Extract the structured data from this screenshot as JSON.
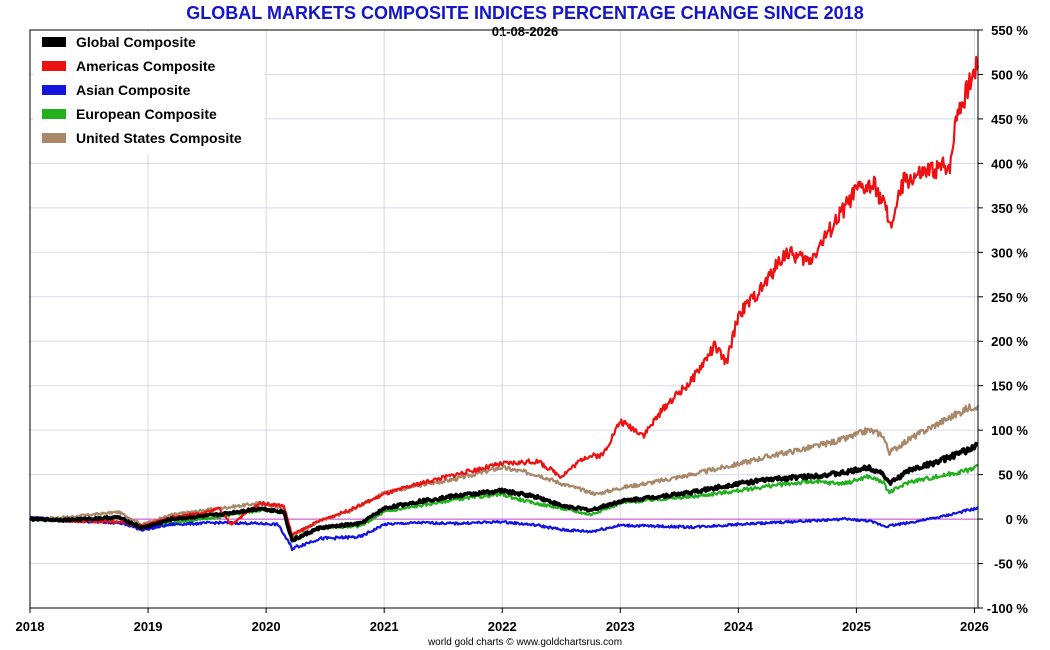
{
  "chart_data": {
    "type": "line",
    "title": "GLOBAL MARKETS COMPOSITE INDICES PERCENTAGE CHANGE SINCE 2018",
    "subtitle": "01-08-2026",
    "credit": "world gold charts © www.goldchartsrus.com",
    "xlabel": "",
    "ylabel": "",
    "xlim": [
      2018.0,
      2026.03
    ],
    "ylim": [
      -100,
      550
    ],
    "x_ticks": [
      "2018",
      "2019",
      "2020",
      "2021",
      "2022",
      "2023",
      "2024",
      "2025",
      "2026"
    ],
    "y_ticks": [
      -100,
      -50,
      0,
      50,
      100,
      150,
      200,
      250,
      300,
      350,
      400,
      450,
      500,
      550
    ],
    "y_tick_suffix": " %",
    "zero_line_color": "#cc44cc",
    "grid": true,
    "legend_position": "top-left",
    "series": [
      {
        "name": "United States Composite",
        "color": "#a88868",
        "points": [
          [
            2018.0,
            0
          ],
          [
            2018.3,
            2
          ],
          [
            2018.75,
            8
          ],
          [
            2018.95,
            -6
          ],
          [
            2019.2,
            5
          ],
          [
            2019.6,
            12
          ],
          [
            2019.95,
            18
          ],
          [
            2020.15,
            12
          ],
          [
            2020.22,
            -20
          ],
          [
            2020.45,
            -2
          ],
          [
            2020.7,
            8
          ],
          [
            2021.0,
            30
          ],
          [
            2021.3,
            38
          ],
          [
            2021.6,
            45
          ],
          [
            2021.99,
            58
          ],
          [
            2022.3,
            50
          ],
          [
            2022.5,
            40
          ],
          [
            2022.8,
            28
          ],
          [
            2023.0,
            35
          ],
          [
            2023.3,
            42
          ],
          [
            2023.6,
            50
          ],
          [
            2024.0,
            62
          ],
          [
            2024.3,
            72
          ],
          [
            2024.6,
            80
          ],
          [
            2024.9,
            90
          ],
          [
            2025.1,
            100
          ],
          [
            2025.22,
            95
          ],
          [
            2025.28,
            75
          ],
          [
            2025.45,
            90
          ],
          [
            2025.7,
            108
          ],
          [
            2025.95,
            125
          ],
          [
            2026.03,
            128
          ]
        ]
      },
      {
        "name": "European Composite",
        "color": "#22b01e",
        "points": [
          [
            2018.0,
            0
          ],
          [
            2018.3,
            -2
          ],
          [
            2018.75,
            -3
          ],
          [
            2018.95,
            -10
          ],
          [
            2019.2,
            -4
          ],
          [
            2019.6,
            2
          ],
          [
            2019.95,
            10
          ],
          [
            2020.15,
            8
          ],
          [
            2020.22,
            -25
          ],
          [
            2020.45,
            -10
          ],
          [
            2020.8,
            -8
          ],
          [
            2021.0,
            8
          ],
          [
            2021.3,
            15
          ],
          [
            2021.6,
            22
          ],
          [
            2021.99,
            28
          ],
          [
            2022.2,
            20
          ],
          [
            2022.5,
            12
          ],
          [
            2022.75,
            5
          ],
          [
            2023.0,
            18
          ],
          [
            2023.3,
            22
          ],
          [
            2023.6,
            25
          ],
          [
            2024.0,
            32
          ],
          [
            2024.3,
            38
          ],
          [
            2024.6,
            42
          ],
          [
            2024.9,
            40
          ],
          [
            2025.1,
            48
          ],
          [
            2025.22,
            42
          ],
          [
            2025.28,
            30
          ],
          [
            2025.45,
            42
          ],
          [
            2025.7,
            48
          ],
          [
            2025.95,
            55
          ],
          [
            2026.03,
            60
          ]
        ]
      },
      {
        "name": "Asian Composite",
        "color": "#1414e0",
        "points": [
          [
            2018.0,
            2
          ],
          [
            2018.3,
            -2
          ],
          [
            2018.75,
            -4
          ],
          [
            2018.95,
            -12
          ],
          [
            2019.2,
            -6
          ],
          [
            2019.6,
            -4
          ],
          [
            2019.95,
            -5
          ],
          [
            2020.1,
            -6
          ],
          [
            2020.22,
            -33
          ],
          [
            2020.45,
            -22
          ],
          [
            2020.8,
            -20
          ],
          [
            2021.0,
            -6
          ],
          [
            2021.3,
            -4
          ],
          [
            2021.6,
            -5
          ],
          [
            2021.99,
            -3
          ],
          [
            2022.3,
            -7
          ],
          [
            2022.5,
            -12
          ],
          [
            2022.75,
            -14
          ],
          [
            2023.0,
            -7
          ],
          [
            2023.3,
            -8
          ],
          [
            2023.6,
            -9
          ],
          [
            2024.0,
            -6
          ],
          [
            2024.3,
            -4
          ],
          [
            2024.6,
            -2
          ],
          [
            2024.9,
            0
          ],
          [
            2025.1,
            -2
          ],
          [
            2025.25,
            -8
          ],
          [
            2025.45,
            -4
          ],
          [
            2025.7,
            2
          ],
          [
            2025.95,
            10
          ],
          [
            2026.03,
            12
          ]
        ]
      },
      {
        "name": "Americas Composite",
        "color": "#ee1111",
        "points": [
          [
            2018.0,
            0
          ],
          [
            2018.3,
            -2
          ],
          [
            2018.75,
            -3
          ],
          [
            2018.95,
            -8
          ],
          [
            2019.2,
            2
          ],
          [
            2019.5,
            8
          ],
          [
            2019.6,
            12
          ],
          [
            2019.7,
            -6
          ],
          [
            2019.95,
            18
          ],
          [
            2020.15,
            15
          ],
          [
            2020.22,
            -18
          ],
          [
            2020.45,
            -2
          ],
          [
            2020.7,
            10
          ],
          [
            2021.0,
            28
          ],
          [
            2021.3,
            40
          ],
          [
            2021.6,
            50
          ],
          [
            2021.99,
            62
          ],
          [
            2022.3,
            65
          ],
          [
            2022.5,
            48
          ],
          [
            2022.7,
            70
          ],
          [
            2022.85,
            72
          ],
          [
            2023.0,
            110
          ],
          [
            2023.2,
            95
          ],
          [
            2023.4,
            130
          ],
          [
            2023.6,
            155
          ],
          [
            2023.8,
            195
          ],
          [
            2023.9,
            175
          ],
          [
            2024.0,
            230
          ],
          [
            2024.2,
            260
          ],
          [
            2024.4,
            300
          ],
          [
            2024.6,
            290
          ],
          [
            2024.8,
            330
          ],
          [
            2025.0,
            370
          ],
          [
            2025.15,
            375
          ],
          [
            2025.25,
            350
          ],
          [
            2025.28,
            325
          ],
          [
            2025.4,
            380
          ],
          [
            2025.6,
            390
          ],
          [
            2025.8,
            400
          ],
          [
            2025.85,
            460
          ],
          [
            2025.9,
            470
          ],
          [
            2026.0,
            505
          ],
          [
            2026.03,
            510
          ]
        ]
      },
      {
        "name": "Global Composite",
        "color": "#000000",
        "points": [
          [
            2018.0,
            0
          ],
          [
            2018.3,
            -1
          ],
          [
            2018.75,
            2
          ],
          [
            2018.95,
            -10
          ],
          [
            2019.2,
            0
          ],
          [
            2019.6,
            5
          ],
          [
            2019.95,
            12
          ],
          [
            2020.15,
            8
          ],
          [
            2020.22,
            -24
          ],
          [
            2020.45,
            -10
          ],
          [
            2020.8,
            -5
          ],
          [
            2021.0,
            12
          ],
          [
            2021.3,
            20
          ],
          [
            2021.6,
            26
          ],
          [
            2021.99,
            32
          ],
          [
            2022.3,
            25
          ],
          [
            2022.5,
            15
          ],
          [
            2022.75,
            10
          ],
          [
            2023.0,
            20
          ],
          [
            2023.3,
            25
          ],
          [
            2023.6,
            30
          ],
          [
            2024.0,
            40
          ],
          [
            2024.3,
            45
          ],
          [
            2024.6,
            48
          ],
          [
            2024.9,
            52
          ],
          [
            2025.1,
            58
          ],
          [
            2025.22,
            52
          ],
          [
            2025.28,
            40
          ],
          [
            2025.45,
            55
          ],
          [
            2025.7,
            65
          ],
          [
            2025.95,
            78
          ],
          [
            2026.03,
            84
          ]
        ]
      }
    ],
    "legend_order": [
      "Global Composite",
      "Americas Composite",
      "Asian Composite",
      "European Composite",
      "United States Composite"
    ]
  }
}
